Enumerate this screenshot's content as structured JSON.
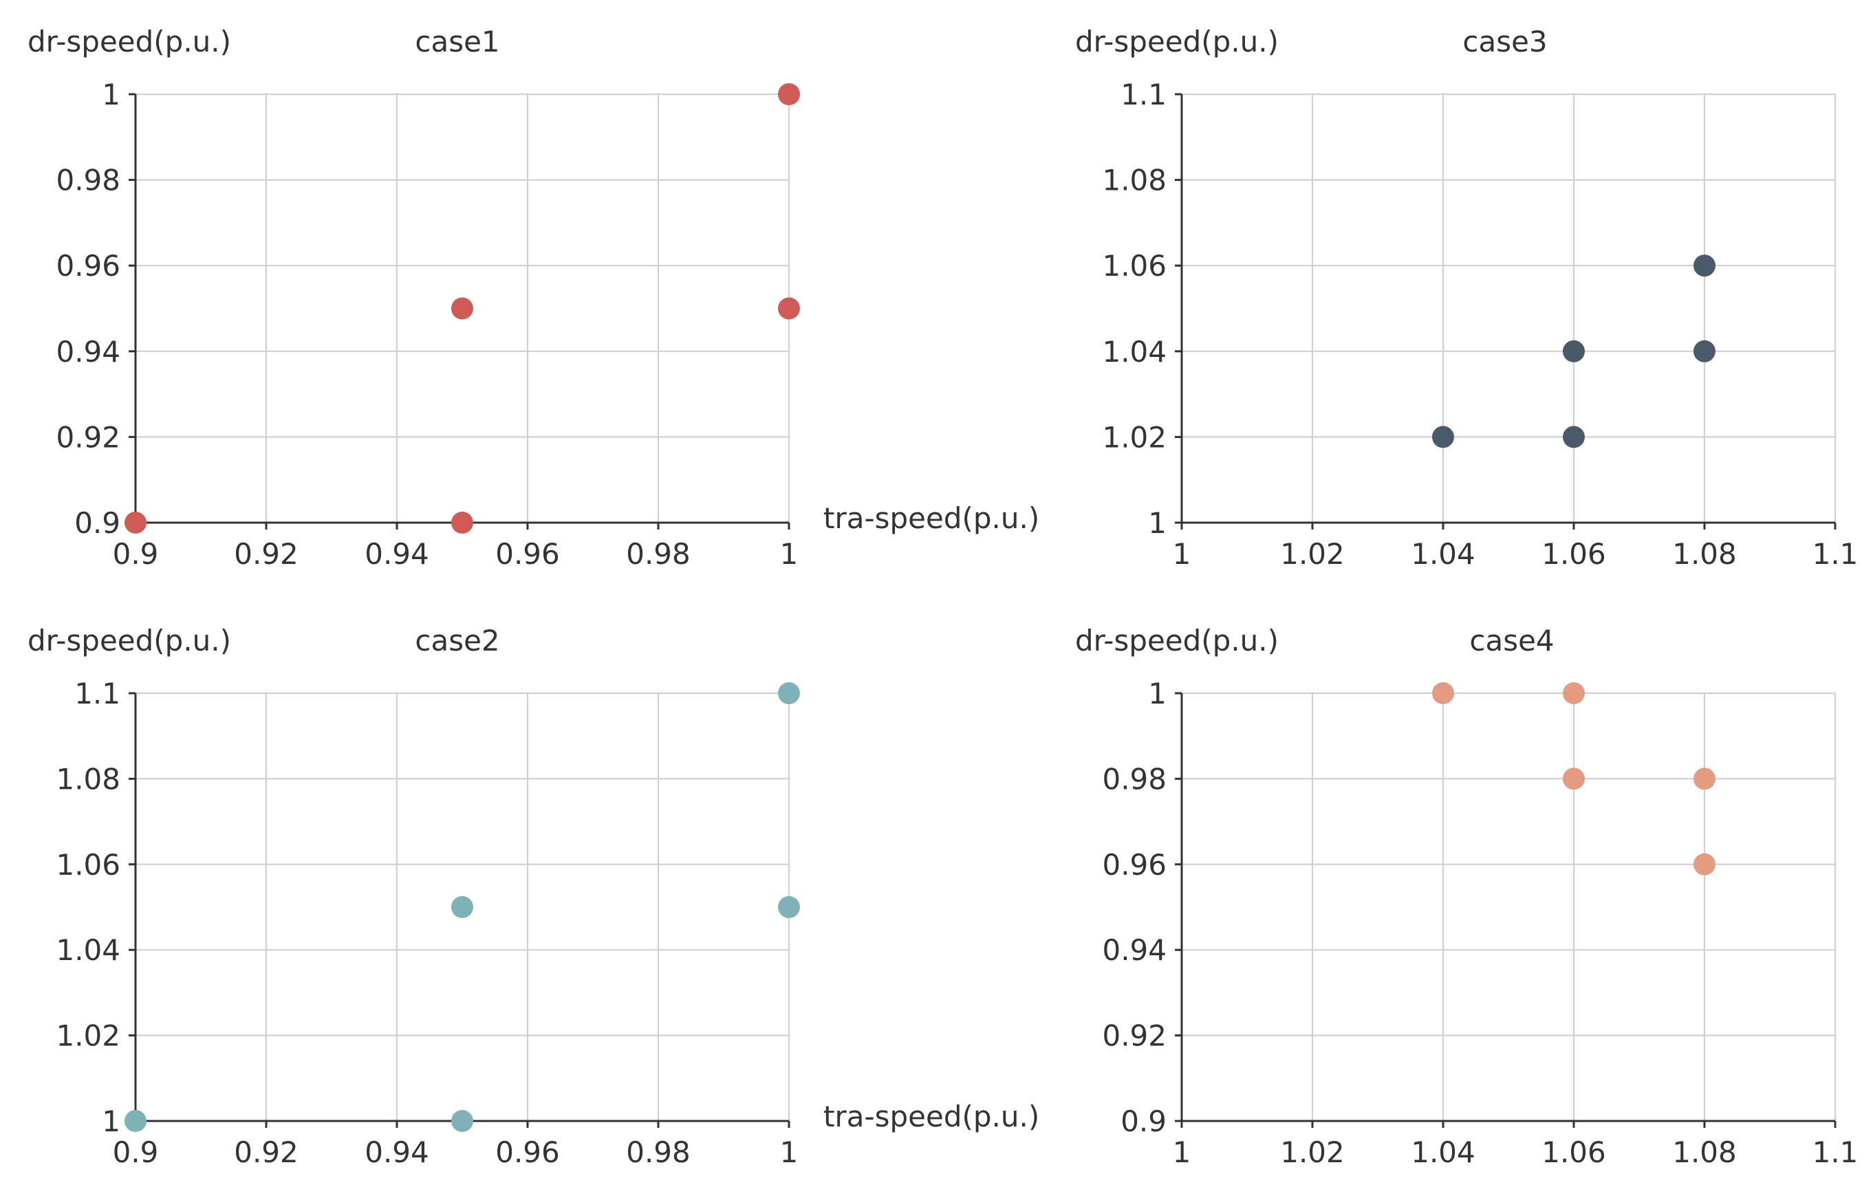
{
  "chart_data": [
    {
      "type": "scatter",
      "title": "case1",
      "xlabel": "tra-speed(p.u.)",
      "ylabel": "dr-speed(p.u.)",
      "xlim": [
        0.9,
        1
      ],
      "ylim": [
        0.9,
        1
      ],
      "xticks": [
        "0.9",
        "0.92",
        "0.94",
        "0.96",
        "0.98",
        "1"
      ],
      "yticks": [
        "0.9",
        "0.92",
        "0.94",
        "0.96",
        "0.98",
        "1"
      ],
      "color": "#d05a55",
      "grid": true,
      "series": [
        {
          "name": "case1",
          "points": [
            [
              0.9,
              0.9
            ],
            [
              0.95,
              0.9
            ],
            [
              0.95,
              0.95
            ],
            [
              1,
              0.95
            ],
            [
              1,
              1
            ]
          ]
        }
      ]
    },
    {
      "type": "scatter",
      "title": "case3",
      "xlabel": "",
      "ylabel": "dr-speed(p.u.)",
      "xlim": [
        1,
        1.1
      ],
      "ylim": [
        1,
        1.1
      ],
      "xticks": [
        "1",
        "1.02",
        "1.04",
        "1.06",
        "1.08",
        "1.1"
      ],
      "yticks": [
        "1",
        "1.02",
        "1.04",
        "1.06",
        "1.08",
        "1.1"
      ],
      "color": "#4a5a6a",
      "grid": true,
      "series": [
        {
          "name": "case3",
          "points": [
            [
              1.04,
              1.02
            ],
            [
              1.06,
              1.02
            ],
            [
              1.06,
              1.04
            ],
            [
              1.08,
              1.04
            ],
            [
              1.08,
              1.06
            ]
          ]
        }
      ]
    },
    {
      "type": "scatter",
      "title": "case2",
      "xlabel": "tra-speed(p.u.)",
      "ylabel": "dr-speed(p.u.)",
      "xlim": [
        0.9,
        1
      ],
      "ylim": [
        1,
        1.1
      ],
      "xticks": [
        "0.9",
        "0.92",
        "0.94",
        "0.96",
        "0.98",
        "1"
      ],
      "yticks": [
        "1",
        "1.02",
        "1.04",
        "1.06",
        "1.08",
        "1.1"
      ],
      "color": "#7fb2b8",
      "grid": true,
      "series": [
        {
          "name": "case2",
          "points": [
            [
              0.9,
              1
            ],
            [
              0.95,
              1
            ],
            [
              0.95,
              1.05
            ],
            [
              1,
              1.05
            ],
            [
              1,
              1.1
            ]
          ]
        }
      ]
    },
    {
      "type": "scatter",
      "title": "case4",
      "xlabel": "",
      "ylabel": "dr-speed(p.u.)",
      "xlim": [
        1,
        1.1
      ],
      "ylim": [
        0.9,
        1
      ],
      "xticks": [
        "1",
        "1.02",
        "1.04",
        "1.06",
        "1.08",
        "1.1"
      ],
      "yticks": [
        "0.9",
        "0.92",
        "0.94",
        "0.96",
        "0.98",
        "1"
      ],
      "color": "#e59b7f",
      "grid": true,
      "series": [
        {
          "name": "case4",
          "points": [
            [
              1.04,
              1
            ],
            [
              1.06,
              1
            ],
            [
              1.06,
              0.98
            ],
            [
              1.08,
              0.98
            ],
            [
              1.08,
              0.96
            ]
          ]
        }
      ]
    }
  ]
}
